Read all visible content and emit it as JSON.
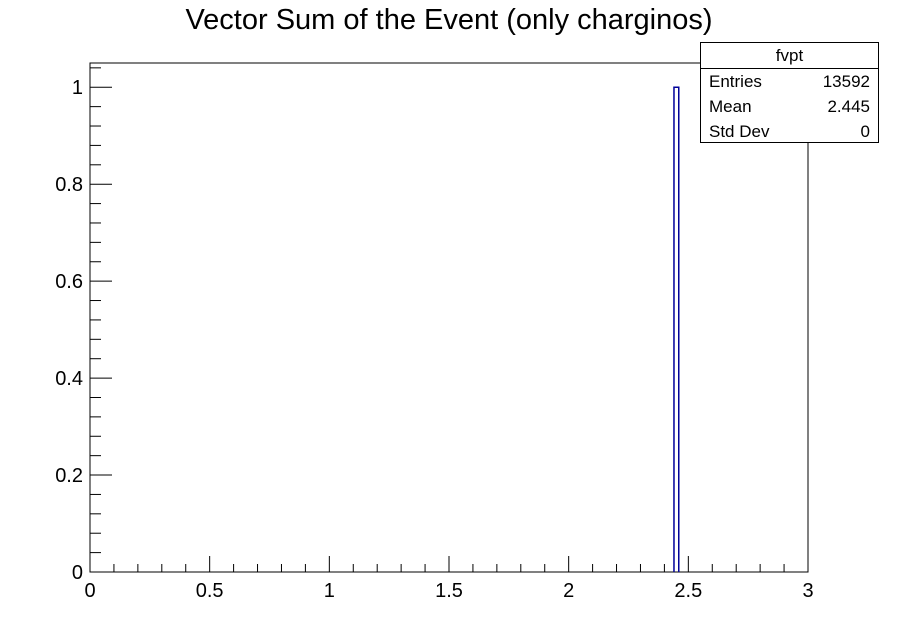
{
  "chart_data": {
    "type": "bar",
    "title": "Vector Sum of the Event (only charginos)",
    "xlabel": "",
    "ylabel": "",
    "xlim": [
      0,
      3
    ],
    "ylim": [
      0,
      1.05
    ],
    "x_ticks": [
      "0",
      "0.5",
      "1",
      "1.5",
      "2",
      "2.5",
      "3"
    ],
    "y_ticks": [
      "0",
      "0.2",
      "0.4",
      "0.6",
      "0.8",
      "1"
    ],
    "bins": [
      {
        "x_low": 2.44,
        "x_high": 2.46,
        "value": 1
      }
    ],
    "grid": false,
    "line_color": "#000099"
  },
  "stats_box": {
    "name": "fvpt",
    "rows": [
      {
        "label": "Entries",
        "value": "13592"
      },
      {
        "label": "Mean",
        "value": "2.445"
      },
      {
        "label": "Std Dev",
        "value": "0"
      }
    ]
  }
}
